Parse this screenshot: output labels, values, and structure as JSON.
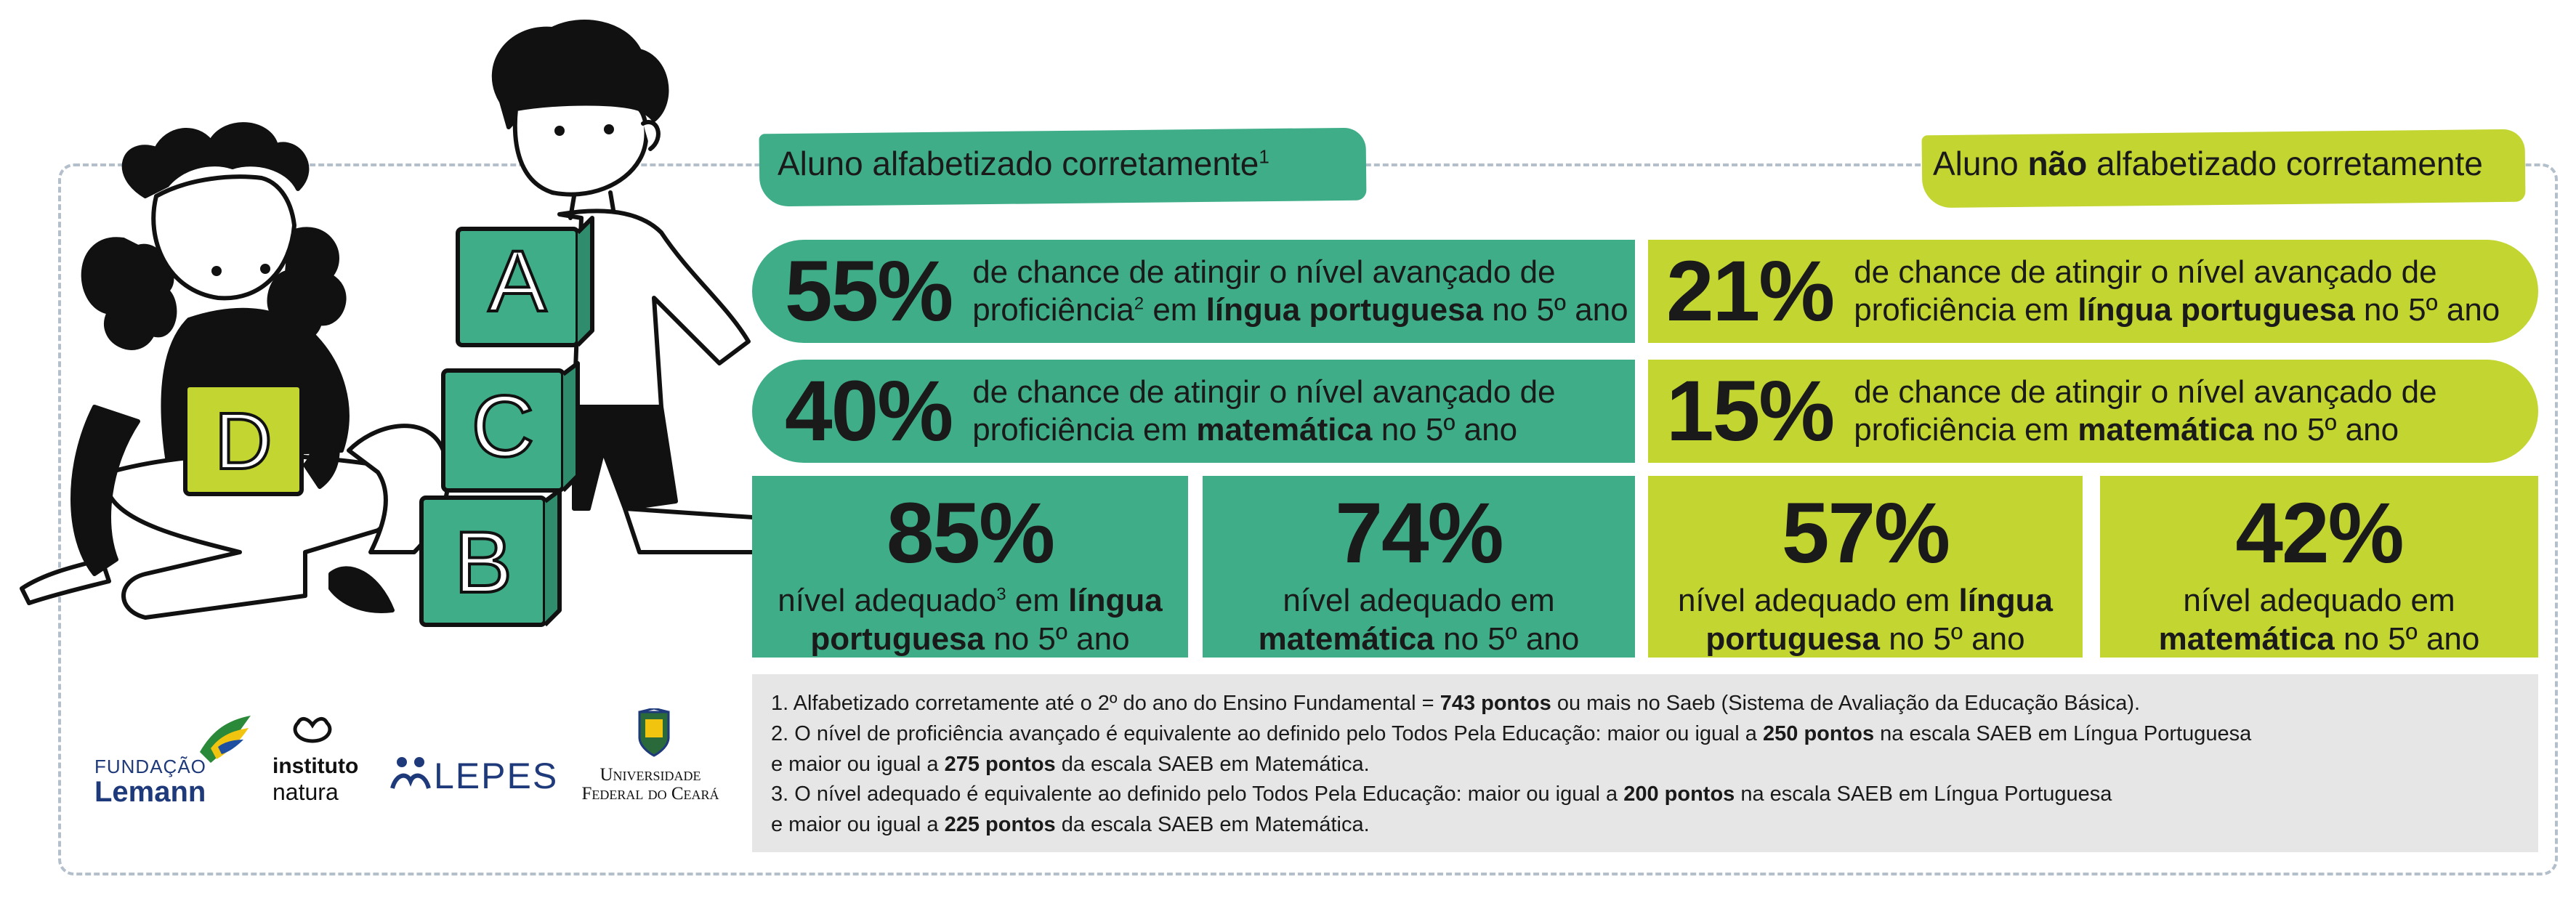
{
  "header_left": {
    "title": "Aluno alfabetizado corretamente",
    "sup": "1"
  },
  "header_right": {
    "title_pre": "Aluno ",
    "title_bold": "não",
    "title_post": " alfabetizado corretamente"
  },
  "colors": {
    "green": "#3fae88",
    "lime": "#c2d531",
    "notes_bg": "#e6e6e6",
    "text": "#1a1a1a"
  },
  "left_rows": [
    {
      "pct": "55%",
      "line1": "de chance de atingir o nível avançado de",
      "pre": "proficiência",
      "sup": "2",
      "mid": " em ",
      "bold": "língua portuguesa",
      "post": " no 5º ano"
    },
    {
      "pct": "40%",
      "line1": "de chance de atingir o nível avançado de",
      "pre": "proficiência em ",
      "bold": "matemática",
      "post": " no 5º ano"
    }
  ],
  "right_rows": [
    {
      "pct": "21%",
      "line1": "de chance de atingir o nível avançado de",
      "pre": "proficiência em ",
      "bold": "língua portuguesa",
      "post": " no 5º ano"
    },
    {
      "pct": "15%",
      "line1": "de chance de atingir o nível avançado de",
      "pre": "proficiência em ",
      "bold": "matemática",
      "post": " no 5º ano"
    }
  ],
  "boxes": [
    {
      "pct": "85%",
      "line1_pre": "nível adequado",
      "sup": "3",
      "line1_mid": " em ",
      "line1_bold": "língua",
      "line2_bold": "portuguesa",
      "line2_post": " no 5º ano"
    },
    {
      "pct": "74%",
      "line1_pre": "nível adequado em",
      "line2_bold": "matemática",
      "line2_post": " no 5º ano"
    },
    {
      "pct": "57%",
      "line1_pre": "nível adequado em ",
      "line1_bold": "língua",
      "line2_bold": "portuguesa",
      "line2_post": " no 5º ano"
    },
    {
      "pct": "42%",
      "line1_pre": "nível adequado em",
      "line2_bold": "matemática",
      "line2_post": " no 5º ano"
    }
  ],
  "notes": {
    "n1_pre": "1. Alfabetizado corretamente até o 2º do ano do Ensino Fundamental = ",
    "n1_bold": "743 pontos",
    "n1_post": " ou mais no Saeb (Sistema de Avaliação da Educação Básica).",
    "n2_pre": "2. O nível de proficiência avançado é equivalente ao definido pelo Todos Pela Educação: maior ou igual a ",
    "n2_bold": "250 pontos",
    "n2_post": " na escala SAEB em Língua Portuguesa",
    "n2b_pre": "e maior ou igual a ",
    "n2b_bold": "275 pontos",
    "n2b_post": " da escala SAEB em Matemática.",
    "n3_pre": "3. O nível adequado é equivalente ao definido pelo Todos Pela Educação: maior ou igual a ",
    "n3_bold": "200 pontos",
    "n3_post": " na escala SAEB em Língua Portuguesa",
    "n3b_pre": "e maior ou igual a ",
    "n3b_bold": "225 pontos",
    "n3b_post": " da escala SAEB em Matemática."
  },
  "logos": {
    "lemann_top": "FUNDAÇÃO",
    "lemann_bottom": "Lemann",
    "natura_top": "instituto",
    "natura_bottom": "natura",
    "lepes": "LEPES",
    "ufc_top": "Universidade",
    "ufc_bottom": "Federal do Ceará"
  },
  "illustration": {
    "blocks": [
      "A",
      "C",
      "B",
      "D"
    ]
  }
}
